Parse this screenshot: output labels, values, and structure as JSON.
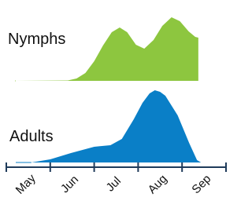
{
  "chart_data": {
    "type": "area",
    "categories": [
      "May",
      "Jun",
      "Jul",
      "Aug",
      "Sep"
    ],
    "xlim": [
      0,
      5
    ],
    "ylim": [
      0,
      100
    ],
    "series": [
      {
        "name": "Nymphs",
        "color": "#8dc63f",
        "x": [
          0.2,
          1.4,
          1.6,
          1.8,
          2.0,
          2.2,
          2.4,
          2.58,
          2.75,
          2.95,
          3.14,
          3.35,
          3.55,
          3.76,
          3.95,
          4.15,
          4.3,
          4.37,
          4.37
        ],
        "values": [
          0,
          0.5,
          3,
          10,
          25,
          45,
          62,
          68,
          62,
          46,
          41,
          52,
          70,
          81,
          76,
          63,
          56,
          55,
          0
        ]
      },
      {
        "name": "Adults",
        "color": "#0a7fc7",
        "x": [
          0.57,
          1.0,
          1.47,
          2.0,
          2.37,
          2.63,
          2.9,
          3.1,
          3.26,
          3.38,
          3.5,
          3.62,
          3.9,
          4.16,
          4.34,
          4.43
        ],
        "values": [
          0,
          4,
          12,
          20,
          22,
          30,
          55,
          76,
          88,
          92,
          90,
          85,
          60,
          25,
          3,
          0
        ]
      }
    ]
  }
}
